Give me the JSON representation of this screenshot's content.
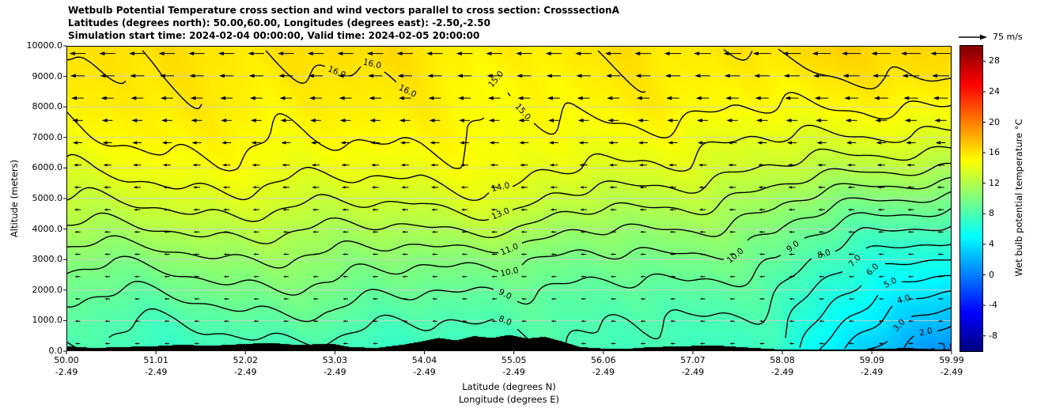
{
  "title": {
    "line1": "Wetbulb Potential Temperature cross section and wind vectors parallel to cross section: CrosssectionA",
    "line2": "Latitudes (degrees north): 50.00,60.00, Longitudes (degrees east): -2.50,-2.50",
    "line3": "Simulation start time: 2024-02-04 00:00:00, Valid time: 2024-02-05 20:00:00"
  },
  "chart_data": {
    "type": "heatmap",
    "subtype": "filled contour cross-section (wet bulb potential temperature) with leftward wind vectors and black terrain silhouette",
    "xlabel": "Latitude (degrees N)",
    "xlabel2": "Longitude (degrees E)",
    "ylabel": "Altitude (meters)",
    "xlim": [
      50.0,
      59.99
    ],
    "ylim": [
      0,
      10000
    ],
    "grid": "horizontal gridlines every 1000 m",
    "x_ticks": [
      {
        "lat": "50.00",
        "lon": "-2.49"
      },
      {
        "lat": "51.01",
        "lon": "-2.49"
      },
      {
        "lat": "52.02",
        "lon": "-2.49"
      },
      {
        "lat": "53.03",
        "lon": "-2.49"
      },
      {
        "lat": "54.04",
        "lon": "-2.49"
      },
      {
        "lat": "55.05",
        "lon": "-2.49"
      },
      {
        "lat": "56.06",
        "lon": "-2.49"
      },
      {
        "lat": "57.07",
        "lon": "-2.49"
      },
      {
        "lat": "58.08",
        "lon": "-2.49"
      },
      {
        "lat": "59.09",
        "lon": "-2.49"
      },
      {
        "lat": "59.99",
        "lon": "-2.49"
      }
    ],
    "y_ticks": [
      "10000.0",
      "9000.0",
      "8000.0",
      "7000.0",
      "6000.0",
      "5000.0",
      "4000.0",
      "3000.0",
      "2000.0",
      "1000.0",
      "0.0"
    ],
    "colorbar": {
      "label": "Wet bulb potential temperature °C",
      "ticks": [
        28,
        24,
        20,
        16,
        12,
        8,
        4,
        0,
        -4,
        -8
      ],
      "vmin": -10,
      "vmax": 30,
      "colormap": "jet"
    },
    "wind_legend": {
      "label": "75 m/s",
      "reference_speed_ms": 75
    },
    "contour_levels": [
      1,
      2,
      3,
      4,
      5,
      6,
      7,
      8,
      9,
      10,
      11,
      12,
      13,
      14,
      15,
      16
    ],
    "contour_label_positions": [
      {
        "level": 16,
        "lat": 53.05
      },
      {
        "level": 16,
        "lat": 53.45
      },
      {
        "level": 16,
        "lat": 53.85
      },
      {
        "level": 15,
        "lat": 54.85
      },
      {
        "level": 15,
        "lat": 55.15
      },
      {
        "level": 14,
        "lat": 54.9
      },
      {
        "level": 13,
        "lat": 54.9
      },
      {
        "level": 11,
        "lat": 55.0
      },
      {
        "level": 10,
        "lat": 55.0
      },
      {
        "level": 10,
        "lat": 57.55
      },
      {
        "level": 9,
        "lat": 54.95
      },
      {
        "level": 9,
        "lat": 58.2
      },
      {
        "level": 8,
        "lat": 54.95
      },
      {
        "level": 8,
        "lat": 50.35
      },
      {
        "level": 8,
        "lat": 58.55
      },
      {
        "level": 7,
        "lat": 58.9
      },
      {
        "level": 6,
        "lat": 59.1
      },
      {
        "level": 5,
        "lat": 59.3
      },
      {
        "level": 4,
        "lat": 59.45
      },
      {
        "level": 3,
        "lat": 59.4
      },
      {
        "level": 2,
        "lat": 59.7
      },
      {
        "level": 1,
        "lat": 59.95
      }
    ],
    "field": {
      "lats": [
        50.0,
        51.0,
        52.0,
        53.0,
        54.0,
        55.0,
        56.0,
        57.0,
        58.0,
        59.0,
        59.99
      ],
      "altitudes_m": [
        0,
        1000,
        2000,
        3000,
        4000,
        5000,
        6000,
        7000,
        8000,
        9000,
        10000
      ],
      "values_degC": [
        [
          7.8,
          7.6,
          7.4,
          7.3,
          7.5,
          7.2,
          7.9,
          7.8,
          6.8,
          3.2,
          0.8
        ],
        [
          8.3,
          8.2,
          8.4,
          8.6,
          8.2,
          7.9,
          8.3,
          8.1,
          7.3,
          4.6,
          2.2
        ],
        [
          9.2,
          9.3,
          9.6,
          9.8,
          9.2,
          8.7,
          9.0,
          8.7,
          8.0,
          5.8,
          3.8
        ],
        [
          10.4,
          10.5,
          10.8,
          10.9,
          10.3,
          9.9,
          10.0,
          9.7,
          9.0,
          7.0,
          5.5
        ],
        [
          11.9,
          12.0,
          12.2,
          12.1,
          11.8,
          12.0,
          11.2,
          10.9,
          10.2,
          8.4,
          7.4
        ],
        [
          13.2,
          13.3,
          13.6,
          13.4,
          13.1,
          13.8,
          12.6,
          12.2,
          11.6,
          10.2,
          9.5
        ],
        [
          14.3,
          14.4,
          14.7,
          14.5,
          14.2,
          14.8,
          13.9,
          13.5,
          13.1,
          12.2,
          11.8
        ],
        [
          15.0,
          15.1,
          15.3,
          15.2,
          14.9,
          15.1,
          14.7,
          14.3,
          14.2,
          13.8,
          13.6
        ],
        [
          15.4,
          15.5,
          15.7,
          15.6,
          15.3,
          15.3,
          15.2,
          15.3,
          15.2,
          14.9,
          14.9
        ],
        [
          15.7,
          15.8,
          16.0,
          15.9,
          15.6,
          15.4,
          15.5,
          15.6,
          15.8,
          15.8,
          16.2
        ],
        [
          15.9,
          16.0,
          16.3,
          16.2,
          16.0,
          15.8,
          15.8,
          16.0,
          16.4,
          16.4,
          16.8
        ]
      ]
    },
    "terrain": {
      "lats": [
        50.0,
        50.3,
        50.6,
        51.0,
        51.3,
        51.6,
        52.0,
        52.3,
        52.6,
        53.0,
        53.2,
        53.5,
        53.8,
        54.0,
        54.2,
        54.4,
        54.6,
        54.8,
        55.0,
        55.2,
        55.4,
        55.6,
        55.8,
        56.0,
        56.3,
        56.6,
        57.0,
        57.3,
        57.6,
        58.0,
        58.4,
        58.8,
        59.2,
        59.5,
        59.8,
        59.99
      ],
      "heights_m": [
        150,
        90,
        120,
        150,
        200,
        160,
        220,
        260,
        190,
        230,
        120,
        90,
        200,
        300,
        420,
        340,
        480,
        420,
        520,
        400,
        460,
        300,
        120,
        80,
        60,
        120,
        150,
        180,
        120,
        50,
        30,
        40,
        60,
        90,
        40,
        30
      ]
    },
    "wind": {
      "direction": "arrows point toward decreasing latitude (left), strongest aloft and toward upper right",
      "rows": 14,
      "columns": 30,
      "profile_altitudes_m": [
        0,
        2000,
        4000,
        6000,
        8000,
        10000
      ],
      "profile_speeds_ms": [
        14,
        15,
        17,
        22,
        33,
        47
      ]
    }
  }
}
